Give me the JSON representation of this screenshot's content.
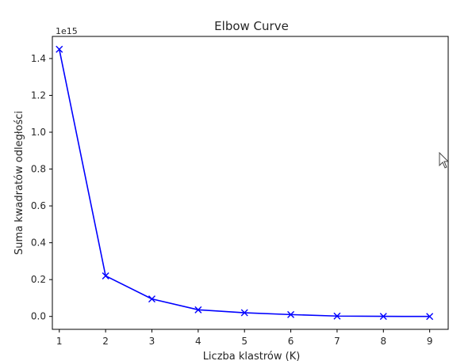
{
  "chart_data": {
    "type": "line",
    "title": "Elbow Curve",
    "xlabel": "Liczba klastrów (K)",
    "ylabel": "Suma kwadratów odległości",
    "offset_label": "1e15",
    "x": [
      1,
      2,
      3,
      4,
      5,
      6,
      7,
      8,
      9
    ],
    "y": [
      1.45,
      0.22,
      0.095,
      0.036,
      0.02,
      0.01,
      0.002,
      0.0005,
      0.0
    ],
    "xlim": [
      0.85,
      9.4
    ],
    "ylim": [
      -0.07,
      1.52
    ],
    "xticks": [
      "1",
      "2",
      "3",
      "4",
      "5",
      "6",
      "7",
      "8",
      "9"
    ],
    "yticks": [
      0.0,
      0.2,
      0.4,
      0.6,
      0.8,
      1.0,
      1.2,
      1.4
    ],
    "ytick_labels": [
      "0.0",
      "0.2",
      "0.4",
      "0.6",
      "0.8",
      "1.0",
      "1.2",
      "1.4"
    ],
    "marker": "x",
    "color": "#0000ff",
    "grid": false
  },
  "icons": {
    "cursor": "mouse-pointer-icon"
  }
}
